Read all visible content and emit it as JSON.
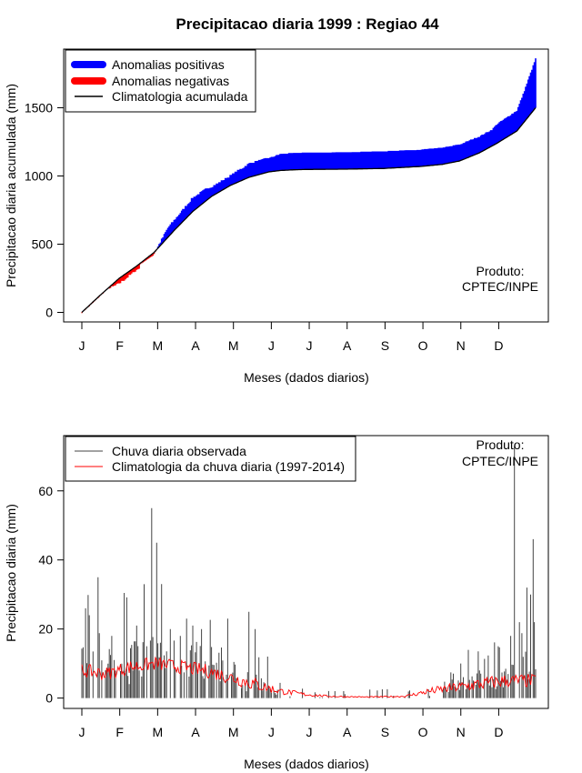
{
  "title": "Precipitacao diaria 1999 : Regiao 44",
  "colors": {
    "positive": "#0000ff",
    "negative": "#ff0000",
    "line": "#000000",
    "observed": "#444444",
    "climatology": "#ff0000"
  },
  "chart_data": [
    {
      "type": "area",
      "ylabel": "Precipitacao diaria acumulada (mm)",
      "xlabel": "Meses (dados diarios)",
      "x_ticks": [
        "J",
        "F",
        "M",
        "A",
        "M",
        "J",
        "J",
        "A",
        "S",
        "O",
        "N",
        "D"
      ],
      "y_ticks": [
        0,
        500,
        1000,
        1500
      ],
      "xlim": [
        1,
        365
      ],
      "ylim": [
        -70,
        1930
      ],
      "legend": {
        "position": "top-left",
        "entries": [
          "Anomalias positivas",
          "Anomalias negativas",
          "Climatologia acumulada"
        ]
      },
      "annotation": [
        "Produto:",
        "CPTEC/INPE"
      ],
      "climatology_anchors": {
        "day": [
          1,
          15,
          31,
          45,
          59,
          75,
          90,
          105,
          120,
          135,
          151,
          160,
          170,
          181,
          212,
          243,
          273,
          290,
          304,
          320,
          334,
          350,
          365
        ],
        "value": [
          0,
          120,
          250,
          340,
          440,
          600,
          740,
          850,
          930,
          990,
          1030,
          1040,
          1045,
          1048,
          1050,
          1055,
          1070,
          1085,
          1110,
          1170,
          1240,
          1330,
          1500
        ]
      },
      "observed_anchors": {
        "day": [
          1,
          10,
          20,
          31,
          45,
          52,
          59,
          70,
          80,
          90,
          100,
          110,
          120,
          135,
          151,
          160,
          170,
          181,
          212,
          243,
          273,
          290,
          304,
          320,
          330,
          334,
          350,
          355,
          365
        ],
        "value": [
          0,
          70,
          160,
          210,
          310,
          350,
          430,
          620,
          730,
          840,
          900,
          945,
          1000,
          1090,
          1130,
          1160,
          1165,
          1168,
          1170,
          1178,
          1190,
          1205,
          1230,
          1290,
          1340,
          1380,
          1480,
          1600,
          1860
        ]
      }
    },
    {
      "type": "line",
      "ylabel": "Precipitacao diaria (mm)",
      "xlabel": "Meses (dados diarios)",
      "x_ticks": [
        "J",
        "F",
        "M",
        "A",
        "M",
        "J",
        "J",
        "A",
        "S",
        "O",
        "N",
        "D"
      ],
      "y_ticks": [
        0,
        20,
        40,
        60
      ],
      "xlim": [
        1,
        365
      ],
      "ylim": [
        -3,
        76
      ],
      "legend": {
        "position": "top-left",
        "entries": [
          "Chuva diaria observada",
          "Climatologia da chuva diaria (1997-2014)"
        ]
      },
      "annotation": [
        "Produto:",
        "CPTEC/INPE"
      ],
      "series": [
        {
          "name": "Chuva diaria observada",
          "peaks": [
            [
              4,
              26
            ],
            [
              7,
              24
            ],
            [
              14,
              35
            ],
            [
              25,
              18
            ],
            [
              45,
              21
            ],
            [
              53,
              15
            ],
            [
              57,
              55
            ],
            [
              61,
              45
            ],
            [
              65,
              33
            ],
            [
              72,
              20
            ],
            [
              85,
              23
            ],
            [
              90,
              21
            ],
            [
              97,
              20
            ],
            [
              118,
              23
            ],
            [
              135,
              25
            ],
            [
              140,
              20
            ],
            [
              150,
              12
            ],
            [
              305,
              10
            ],
            [
              320,
              8
            ],
            [
              335,
              15
            ],
            [
              345,
              18
            ],
            [
              348,
              73
            ],
            [
              352,
              22
            ],
            [
              358,
              32
            ],
            [
              361,
              30
            ],
            [
              363,
              46
            ],
            [
              364,
              22
            ]
          ]
        },
        {
          "name": "Climatologia da chuva diaria (1997-2014)",
          "anchors": {
            "day": [
              1,
              20,
              40,
              60,
              80,
              100,
              120,
              140,
              160,
              181,
              200,
              230,
              260,
              280,
              300,
              320,
              340,
              365
            ],
            "value": [
              8,
              7,
              9,
              10,
              9,
              8,
              6,
              4,
              2,
              1,
              0.5,
              0.3,
              0.5,
              2,
              3,
              4,
              5,
              5
            ]
          }
        }
      ]
    }
  ]
}
